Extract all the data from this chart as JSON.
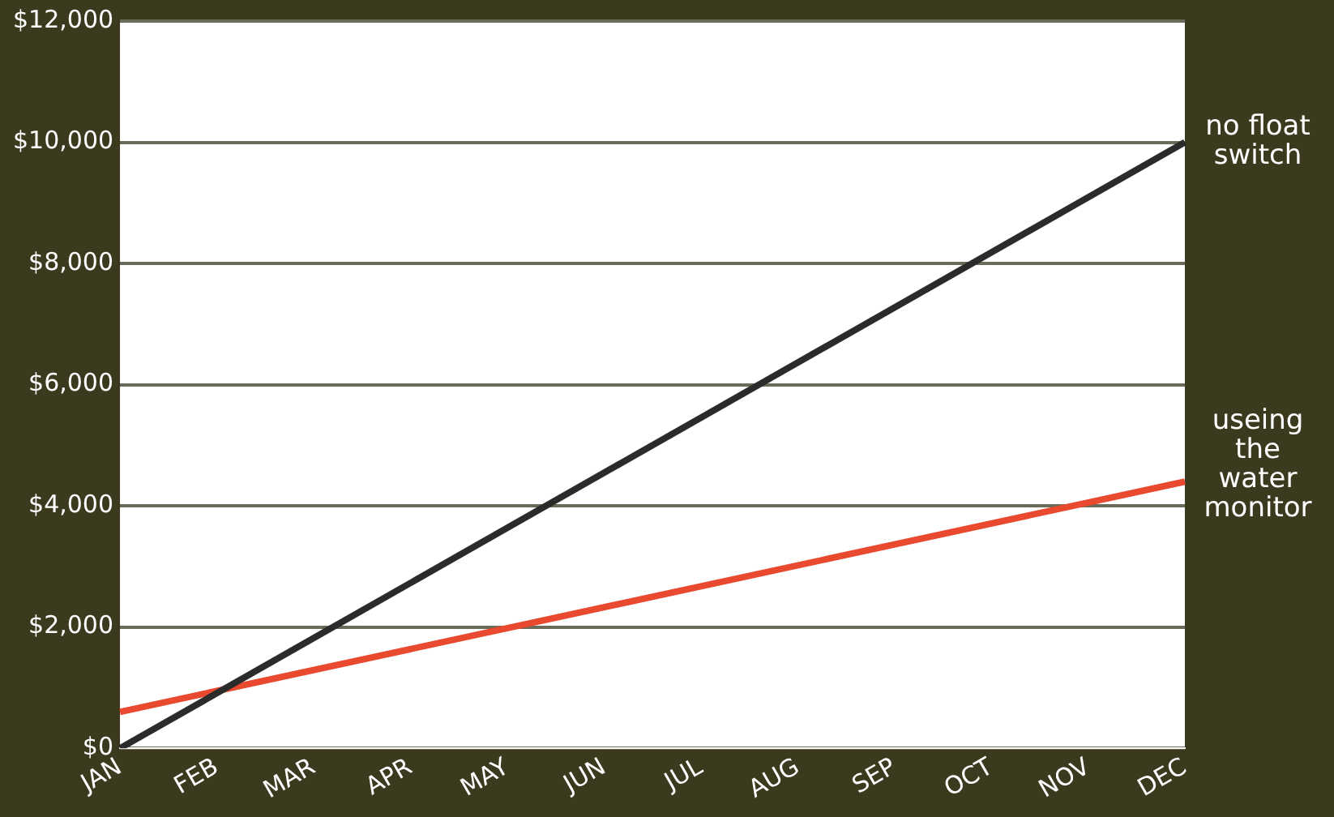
{
  "chart_data": {
    "type": "line",
    "categories": [
      "JAN",
      "FEB",
      "MAR",
      "APR",
      "MAY",
      "JUN",
      "JUL",
      "AUG",
      "SEP",
      "OCT",
      "NOV",
      "DEC"
    ],
    "series": [
      {
        "name": "no float switch",
        "color": "#2b2b2b",
        "x": [
          "JAN",
          "DEC"
        ],
        "values": [
          0,
          10000
        ]
      },
      {
        "name": "useing the water monitor",
        "color": "#e8492f",
        "x": [
          "JAN",
          "DEC"
        ],
        "values": [
          600,
          4400
        ]
      }
    ],
    "ylim": [
      0,
      12000
    ],
    "yticks": [
      {
        "value": 0,
        "label": "$0"
      },
      {
        "value": 2000,
        "label": "$2,000"
      },
      {
        "value": 4000,
        "label": "$4,000"
      },
      {
        "value": 6000,
        "label": "$6,000"
      },
      {
        "value": 8000,
        "label": "$8,000"
      },
      {
        "value": 10000,
        "label": "$10,000"
      },
      {
        "value": 12000,
        "label": "$12,000"
      }
    ],
    "grid": "y",
    "marker": "none",
    "line_style": "solid"
  }
}
